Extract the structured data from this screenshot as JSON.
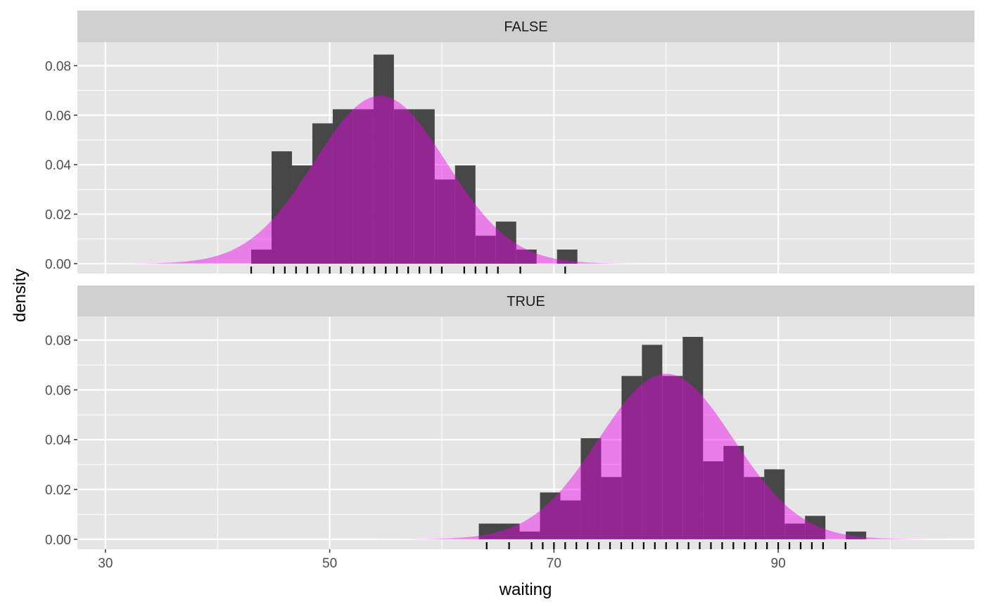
{
  "chart_data": {
    "type": "histogram-density-faceted",
    "xlabel": "waiting",
    "ylabel": "density",
    "xlim": [
      27.5,
      107.5
    ],
    "ylim": [
      -0.004,
      0.0895
    ],
    "x_ticks": [
      30,
      50,
      70,
      90
    ],
    "x_minor_ticks": [
      40,
      60,
      80,
      100
    ],
    "y_ticks": [
      0.0,
      0.02,
      0.04,
      0.06,
      0.08
    ],
    "y_tick_labels": [
      "0.00",
      "0.02",
      "0.04",
      "0.06",
      "0.08"
    ],
    "bin_width": 1.818,
    "colors": {
      "panel_bg": "#e5e5e5",
      "grid": "#ffffff",
      "strip_bg": "#d0d0d0",
      "bar": "#474747",
      "density_fill": "#ee00ee",
      "density_alpha": 0.45,
      "rug": "#000000",
      "tick_text": "#4d4d4d"
    },
    "facets": [
      {
        "label": "FALSE",
        "histogram": [
          {
            "x0": 43.0,
            "density": 0.0057
          },
          {
            "x0": 44.818,
            "density": 0.0454
          },
          {
            "x0": 46.636,
            "density": 0.0397
          },
          {
            "x0": 48.455,
            "density": 0.0567
          },
          {
            "x0": 50.273,
            "density": 0.0624
          },
          {
            "x0": 52.091,
            "density": 0.0624
          },
          {
            "x0": 53.909,
            "density": 0.0845
          },
          {
            "x0": 55.727,
            "density": 0.0624
          },
          {
            "x0": 57.545,
            "density": 0.0624
          },
          {
            "x0": 59.364,
            "density": 0.034
          },
          {
            "x0": 61.182,
            "density": 0.0397
          },
          {
            "x0": 63.0,
            "density": 0.0113
          },
          {
            "x0": 64.818,
            "density": 0.017
          },
          {
            "x0": 66.636,
            "density": 0.0057
          },
          {
            "x0": 68.455,
            "density": 0.0
          },
          {
            "x0": 70.273,
            "density": 0.0057
          }
        ],
        "normal_curve": {
          "mean": 54.5,
          "sd": 5.88
        },
        "rug": [
          43,
          45,
          46,
          47,
          48,
          49,
          50,
          51,
          52,
          53,
          54,
          55,
          56,
          57,
          58,
          59,
          60,
          62,
          63,
          64,
          65,
          67,
          71
        ]
      },
      {
        "label": "TRUE",
        "histogram": [
          {
            "x0": 63.3,
            "density": 0.0063
          },
          {
            "x0": 65.118,
            "density": 0.0063
          },
          {
            "x0": 66.936,
            "density": 0.0031
          },
          {
            "x0": 68.755,
            "density": 0.0188
          },
          {
            "x0": 70.573,
            "density": 0.0156
          },
          {
            "x0": 72.391,
            "density": 0.0406
          },
          {
            "x0": 74.209,
            "density": 0.025
          },
          {
            "x0": 76.027,
            "density": 0.0656
          },
          {
            "x0": 77.845,
            "density": 0.0781
          },
          {
            "x0": 79.664,
            "density": 0.0656
          },
          {
            "x0": 81.482,
            "density": 0.0813
          },
          {
            "x0": 83.3,
            "density": 0.0313
          },
          {
            "x0": 85.118,
            "density": 0.0375
          },
          {
            "x0": 86.936,
            "density": 0.025
          },
          {
            "x0": 88.755,
            "density": 0.0281
          },
          {
            "x0": 90.573,
            "density": 0.0063
          },
          {
            "x0": 92.391,
            "density": 0.0094
          },
          {
            "x0": 94.209,
            "density": 0.0
          },
          {
            "x0": 96.027,
            "density": 0.0031
          }
        ],
        "normal_curve": {
          "mean": 80.0,
          "sd": 6.0
        },
        "rug": [
          64,
          66,
          68,
          69,
          70,
          71,
          72,
          73,
          74,
          75,
          76,
          77,
          78,
          79,
          80,
          81,
          82,
          83,
          84,
          85,
          86,
          87,
          88,
          89,
          90,
          91,
          92,
          93,
          94,
          96
        ]
      }
    ]
  }
}
